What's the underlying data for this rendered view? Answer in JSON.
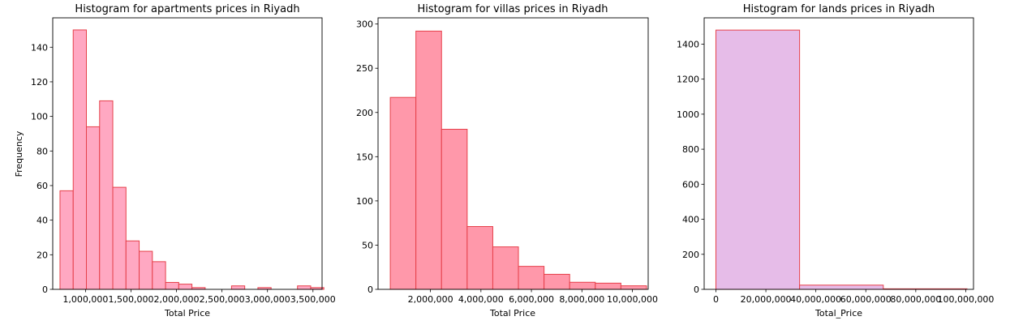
{
  "chart_data": [
    {
      "type": "bar",
      "title": "Histogram for apartments prices in Riyadh",
      "xlabel": "Total Price",
      "ylabel": "Frequency",
      "xlim": [
        640000,
        3600000
      ],
      "ylim": [
        0,
        157
      ],
      "x_ticks": [
        1000000,
        1500000,
        2000000,
        2500000,
        3000000,
        3500000
      ],
      "x_tick_labels": [
        "1,000,000",
        "1,500,000",
        "2,000,000",
        "2,500,000",
        "3,000,000",
        "3,500,000"
      ],
      "y_ticks": [
        0,
        20,
        40,
        60,
        80,
        100,
        120,
        140
      ],
      "y_tick_labels": [
        "0",
        "20",
        "40",
        "60",
        "80",
        "100",
        "120",
        "140"
      ],
      "bin_edges": [
        720000,
        865000,
        1010000,
        1155000,
        1300000,
        1445000,
        1590000,
        1735000,
        1880000,
        2025000,
        2170000,
        2315000,
        2460000,
        2605000,
        2750000,
        2895000,
        3040000,
        3185000,
        3330000,
        3475000,
        3620000
      ],
      "values": [
        57,
        150,
        94,
        109,
        59,
        28,
        22,
        16,
        4,
        3,
        1,
        0,
        0,
        2,
        0,
        1,
        0,
        0,
        2,
        1
      ],
      "fill": "#ffa8c2",
      "edge": "#e6404a",
      "grid": false
    },
    {
      "type": "bar",
      "title": "Histogram for villas prices in Riyadh",
      "xlabel": "Total Price",
      "ylabel": "",
      "xlim": [
        -75000,
        10625000
      ],
      "ylim": [
        0,
        307
      ],
      "x_ticks": [
        2000000,
        4000000,
        6000000,
        8000000,
        10000000
      ],
      "x_tick_labels": [
        "2,000,000",
        "4,000,000",
        "6,000,000",
        "8,000,000",
        "10,000,000"
      ],
      "y_ticks": [
        0,
        50,
        100,
        150,
        200,
        250,
        300
      ],
      "y_tick_labels": [
        "0",
        "50",
        "100",
        "150",
        "200",
        "250",
        "300"
      ],
      "bin_edges": [
        410000,
        1425000,
        2440000,
        3455000,
        4470000,
        5485000,
        6500000,
        7515000,
        8530000,
        9545000,
        10560000
      ],
      "values": [
        217,
        292,
        181,
        71,
        48,
        26,
        17,
        8,
        7,
        4
      ],
      "fill": "#ff98aa",
      "edge": "#e6404a",
      "grid": false
    },
    {
      "type": "bar",
      "title": "Histogram for lands prices in Riyadh",
      "xlabel": "Total_Price",
      "ylabel": "",
      "xlim": [
        -4700000,
        103100000
      ],
      "ylim": [
        0,
        1550
      ],
      "x_ticks": [
        0,
        20000000,
        40000000,
        60000000,
        80000000,
        100000000
      ],
      "x_tick_labels": [
        "0",
        "20,000,000",
        "40,000,000",
        "60,000,000",
        "80,000,000",
        "100,000,000"
      ],
      "y_ticks": [
        0,
        200,
        400,
        600,
        800,
        1000,
        1200,
        1400
      ],
      "y_tick_labels": [
        "0",
        "200",
        "400",
        "600",
        "800",
        "1000",
        "1200",
        "1400"
      ],
      "bin_edges": [
        0,
        33500000,
        67000000,
        100500000
      ],
      "values": [
        1480,
        24,
        3
      ],
      "fill": "#e6bce8",
      "edge": "#e6404a",
      "grid": false
    }
  ]
}
